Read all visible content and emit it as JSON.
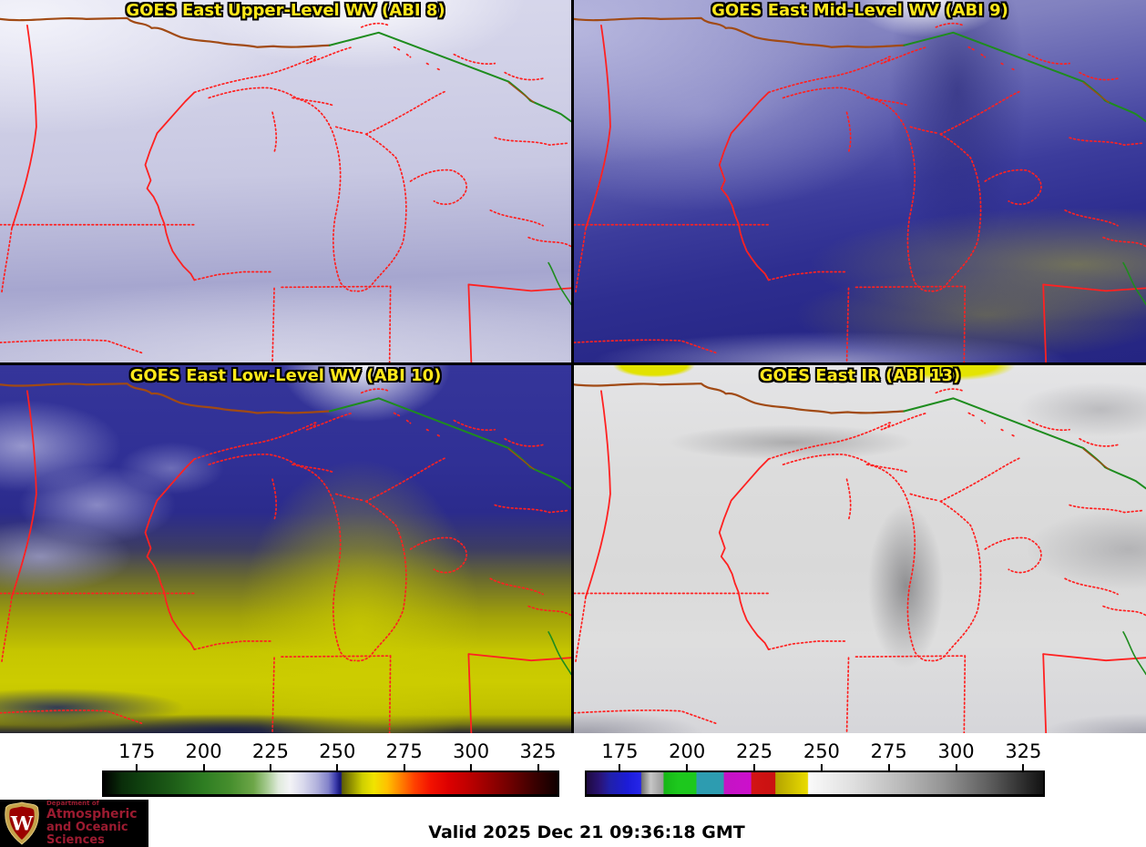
{
  "panels": [
    {
      "title": "GOES East Upper-Level WV (ABI 8)"
    },
    {
      "title": "GOES East Mid-Level WV (ABI 9)"
    },
    {
      "title": "GOES East Low-Level WV (ABI 10)"
    },
    {
      "title": "GOES East IR (ABI 13)"
    }
  ],
  "colorbars": [
    {
      "name": "wv-brightness-temperature-colorbar",
      "ticks": [
        175,
        200,
        225,
        250,
        275,
        300,
        325
      ],
      "range": [
        162,
        333
      ],
      "stops": [
        [
          "0%",
          "#000000"
        ],
        [
          "4%",
          "#0a2d0a"
        ],
        [
          "7.6%",
          "#0e3e0e"
        ],
        [
          "15%",
          "#1d5c17"
        ],
        [
          "22%",
          "#2e7d22"
        ],
        [
          "28%",
          "#478f2e"
        ],
        [
          "33%",
          "#6da648"
        ],
        [
          "36%",
          "#a7cb92"
        ],
        [
          "38.5%",
          "#dfeadb"
        ],
        [
          "41%",
          "#f3f3f6"
        ],
        [
          "44%",
          "#d8d8ec"
        ],
        [
          "47%",
          "#b1b1dc"
        ],
        [
          "49.5%",
          "#8282ca"
        ],
        [
          "51%",
          "#4040ae"
        ],
        [
          "52%",
          "#191980"
        ],
        [
          "52.3%",
          "#191980"
        ],
        [
          "52.5%",
          "#5c5c08"
        ],
        [
          "54.5%",
          "#909000"
        ],
        [
          "57%",
          "#cfcf00"
        ],
        [
          "59.5%",
          "#f0e400"
        ],
        [
          "62.5%",
          "#ffc000"
        ],
        [
          "65.5%",
          "#ff8000"
        ],
        [
          "68.5%",
          "#ff4000"
        ],
        [
          "72%",
          "#f31200"
        ],
        [
          "76%",
          "#dc0000"
        ],
        [
          "80%",
          "#c10000"
        ],
        [
          "85%",
          "#970000"
        ],
        [
          "90%",
          "#6b0000"
        ],
        [
          "95%",
          "#3a0000"
        ],
        [
          "100%",
          "#100000"
        ]
      ]
    },
    {
      "name": "ir-brightness-temperature-colorbar",
      "ticks": [
        175,
        200,
        225,
        250,
        275,
        300,
        325
      ],
      "range": [
        162,
        333
      ],
      "stops": [
        [
          "0%",
          "#1e0a40"
        ],
        [
          "3%",
          "#2a1478"
        ],
        [
          "5%",
          "#2020a8"
        ],
        [
          "9%",
          "#1c1cd8"
        ],
        [
          "11.9%",
          "#2626ea"
        ],
        [
          "12%",
          "#6f6f6f"
        ],
        [
          "14%",
          "#c6c6c6"
        ],
        [
          "16.8%",
          "#999999"
        ],
        [
          "16.9%",
          "#16b616"
        ],
        [
          "20%",
          "#1dc81d"
        ],
        [
          "24%",
          "#1dc81d"
        ],
        [
          "24.1%",
          "#2d9cb0"
        ],
        [
          "30%",
          "#2d9cb0"
        ],
        [
          "30.1%",
          "#c414c4"
        ],
        [
          "36%",
          "#cc10cc"
        ],
        [
          "36.1%",
          "#d21414"
        ],
        [
          "41.3%",
          "#c91111"
        ],
        [
          "41.4%",
          "#b3a300"
        ],
        [
          "45%",
          "#cfc000"
        ],
        [
          "48.4%",
          "#e9db00"
        ],
        [
          "48.6%",
          "#fafafa"
        ],
        [
          "58%",
          "#e0e0e0"
        ],
        [
          "68%",
          "#bdbdbd"
        ],
        [
          "78%",
          "#959595"
        ],
        [
          "88%",
          "#5f5f5f"
        ],
        [
          "100%",
          "#121212"
        ]
      ]
    }
  ],
  "map_overlay_colors": {
    "state_borders": "#ff2121",
    "lakes_rivers": "#1e8c1e",
    "international_border": "#a14a14",
    "panel_title": "#ffe81a"
  },
  "footer": {
    "valid_label": "Valid 2025 Dec 21 09:36:18 GMT",
    "logo": {
      "dept_label": "Department of",
      "line1": "Atmospheric",
      "line2": "and Oceanic Sciences",
      "crest_letter": "W"
    }
  }
}
